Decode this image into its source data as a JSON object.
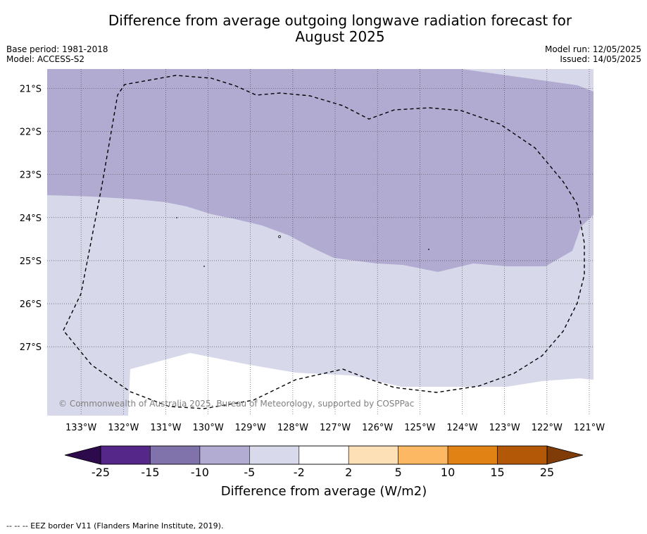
{
  "title_line1": "Difference from average outgoing longwave radiation forecast for",
  "title_line2": "August 2025",
  "base_period": "Base period: 1981-2018",
  "model": "Model: ACCESS-S2",
  "model_run": "Model run: 12/05/2025",
  "issued": "Issued: 14/05/2025",
  "copyright": "© Commonwealth of Australia 2025, Bureau of Meteorology, supported by COSPPac",
  "footnote": "--  --  -- EEZ border V11 (Flanders Marine Institute, 2019).",
  "map": {
    "lon_range": [
      -133.8,
      -120.9
    ],
    "lat_range": [
      -28.6,
      -20.55
    ],
    "lon_ticks": [
      {
        "value": -133,
        "label": "133°W"
      },
      {
        "value": -132,
        "label": "132°W"
      },
      {
        "value": -131,
        "label": "131°W"
      },
      {
        "value": -130,
        "label": "130°W"
      },
      {
        "value": -129,
        "label": "129°W"
      },
      {
        "value": -128,
        "label": "128°W"
      },
      {
        "value": -127,
        "label": "127°W"
      },
      {
        "value": -126,
        "label": "126°W"
      },
      {
        "value": -125,
        "label": "125°W"
      },
      {
        "value": -124,
        "label": "124°W"
      },
      {
        "value": -123,
        "label": "123°W"
      },
      {
        "value": -122,
        "label": "122°W"
      },
      {
        "value": -121,
        "label": "121°W"
      }
    ],
    "lat_ticks": [
      {
        "value": -21,
        "label": "21°S"
      },
      {
        "value": -22,
        "label": "22°S"
      },
      {
        "value": -23,
        "label": "23°S"
      },
      {
        "value": -24,
        "label": "24°S"
      },
      {
        "value": -25,
        "label": "25°S"
      },
      {
        "value": -26,
        "label": "26°S"
      },
      {
        "value": -27,
        "label": "27°S"
      }
    ],
    "colors": {
      "band_minus10_minus5": "#b1abd2",
      "band_minus5_minus2": "#d8d8eb",
      "band_minus2_2": "#ffffff",
      "grid": "#3a3a3a",
      "eez_border": "#000000"
    }
  },
  "colorbar": {
    "label": "Difference from average (W/m2)",
    "ticks": [
      "-25",
      "-15",
      "-10",
      "-5",
      "-2",
      "2",
      "5",
      "10",
      "15",
      "25"
    ],
    "under_color": "#2d0a4c",
    "over_color": "#7f3b08",
    "colors": [
      "#542788",
      "#8073ac",
      "#b2abd2",
      "#d8daeb",
      "#ffffff",
      "#fee0b6",
      "#fdb863",
      "#e08214",
      "#b35806"
    ]
  }
}
